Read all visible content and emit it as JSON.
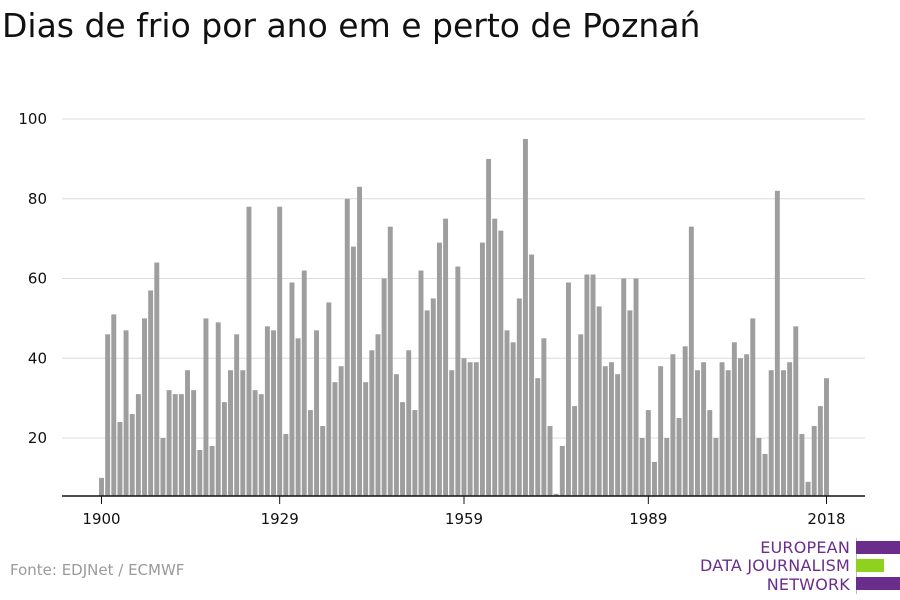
{
  "title": "Dias de frio por ano em e perto de Poznań",
  "source": "Fonte: EDJNet / ECMWF",
  "logo": {
    "lines": [
      "EUROPEAN",
      "DATA JOURNALISM",
      "NETWORK"
    ],
    "purple": "#6b2d8c",
    "green": "#8ed11f"
  },
  "chart_data": {
    "type": "bar",
    "title": "Dias de frio por ano em e perto de Poznań",
    "xlabel": "",
    "ylabel": "",
    "ylim": [
      5,
      100
    ],
    "yticks": [
      20,
      40,
      60,
      80,
      100
    ],
    "xticks": [
      1900,
      1929,
      1959,
      1989,
      2018
    ],
    "grid": true,
    "bar_color": "#9e9e9e",
    "x": [
      1900,
      1901,
      1902,
      1903,
      1904,
      1905,
      1906,
      1907,
      1908,
      1909,
      1910,
      1911,
      1912,
      1913,
      1914,
      1915,
      1916,
      1917,
      1918,
      1919,
      1920,
      1921,
      1922,
      1923,
      1924,
      1925,
      1926,
      1927,
      1928,
      1929,
      1930,
      1931,
      1932,
      1933,
      1934,
      1935,
      1936,
      1937,
      1938,
      1939,
      1940,
      1941,
      1942,
      1943,
      1944,
      1945,
      1946,
      1947,
      1948,
      1949,
      1950,
      1951,
      1952,
      1953,
      1954,
      1955,
      1956,
      1957,
      1958,
      1959,
      1960,
      1961,
      1962,
      1963,
      1964,
      1965,
      1966,
      1967,
      1968,
      1969,
      1970,
      1971,
      1972,
      1973,
      1974,
      1975,
      1976,
      1977,
      1978,
      1979,
      1980,
      1981,
      1982,
      1983,
      1984,
      1985,
      1986,
      1987,
      1988,
      1989,
      1990,
      1991,
      1992,
      1993,
      1994,
      1995,
      1996,
      1997,
      1998,
      1999,
      2000,
      2001,
      2002,
      2003,
      2004,
      2005,
      2006,
      2007,
      2008,
      2009,
      2010,
      2011,
      2012,
      2013,
      2014,
      2015,
      2016,
      2017,
      2018
    ],
    "values": [
      10,
      46,
      51,
      24,
      47,
      26,
      31,
      50,
      57,
      64,
      20,
      32,
      31,
      31,
      37,
      32,
      17,
      50,
      18,
      49,
      29,
      37,
      46,
      37,
      78,
      32,
      31,
      48,
      47,
      78,
      21,
      59,
      45,
      62,
      27,
      47,
      23,
      54,
      34,
      38,
      80,
      68,
      83,
      34,
      42,
      46,
      60,
      73,
      36,
      29,
      42,
      27,
      62,
      52,
      55,
      69,
      75,
      37,
      63,
      40,
      39,
      39,
      69,
      90,
      75,
      72,
      47,
      44,
      55,
      95,
      66,
      35,
      45,
      23,
      6,
      18,
      59,
      28,
      46,
      61,
      61,
      53,
      38,
      39,
      36,
      60,
      52,
      60,
      20,
      27,
      14,
      38,
      20,
      41,
      25,
      43,
      73,
      37,
      39,
      27,
      20,
      39,
      37,
      44,
      40,
      41,
      50,
      20,
      16,
      37,
      82,
      37,
      39,
      48,
      21,
      9,
      23,
      28,
      35
    ]
  }
}
